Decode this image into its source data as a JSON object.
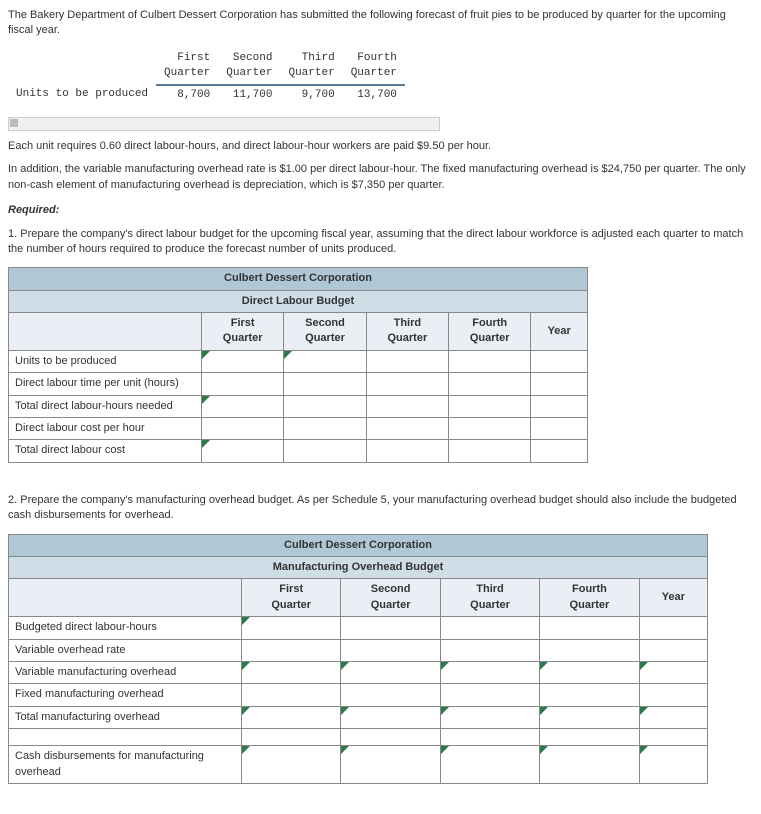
{
  "intro": "The Bakery Department of Culbert Dessert Corporation has submitted the following forecast of fruit pies to be produced by quarter for the upcoming fiscal year.",
  "prod": {
    "rowlabel": "Units to be produced",
    "cols": [
      "First Quarter",
      "Second Quarter",
      "Third Quarter",
      "Fourth Quarter"
    ],
    "vals": [
      "8,700",
      "11,700",
      "9,700",
      "13,700"
    ]
  },
  "para1": "Each unit requires 0.60 direct labour-hours, and direct labour-hour workers are paid $9.50 per hour.",
  "para2": "In addition, the variable manufacturing overhead rate is $1.00 per direct labour-hour. The fixed manufacturing overhead is $24,750 per quarter. The only non-cash element of manufacturing overhead is depreciation, which is $7,350 per quarter.",
  "req_heading": "Required:",
  "req1": "1. Prepare the company's direct labour budget for the upcoming fiscal year, assuming that the direct labour workforce is adjusted each quarter to match the number of hours required to produce the forecast number of units produced.",
  "budget1": {
    "title": "Culbert Dessert Corporation",
    "subtitle": "Direct Labour Budget",
    "cols": [
      "First Quarter",
      "Second Quarter",
      "Third Quarter",
      "Fourth Quarter",
      "Year"
    ],
    "rows": [
      "Units to be produced",
      "Direct labour time per unit (hours)",
      "Total direct labour-hours needed",
      "Direct labour cost per hour",
      "Total direct labour cost"
    ]
  },
  "req2": "2. Prepare the company's manufacturing overhead budget. As per Schedule 5, your manufacturing overhead budget should also include the budgeted cash disbursements for overhead.",
  "budget2": {
    "title": "Culbert Dessert Corporation",
    "subtitle": "Manufacturing Overhead Budget",
    "cols": [
      "First Quarter",
      "Second Quarter",
      "Third Quarter",
      "Fourth Quarter",
      "Year"
    ],
    "rows": [
      "Budgeted direct labour-hours",
      "Variable overhead rate",
      "Variable manufacturing overhead",
      "Fixed manufacturing overhead",
      "Total manufacturing overhead"
    ],
    "lastrow": "Cash disbursements for manufacturing overhead"
  }
}
